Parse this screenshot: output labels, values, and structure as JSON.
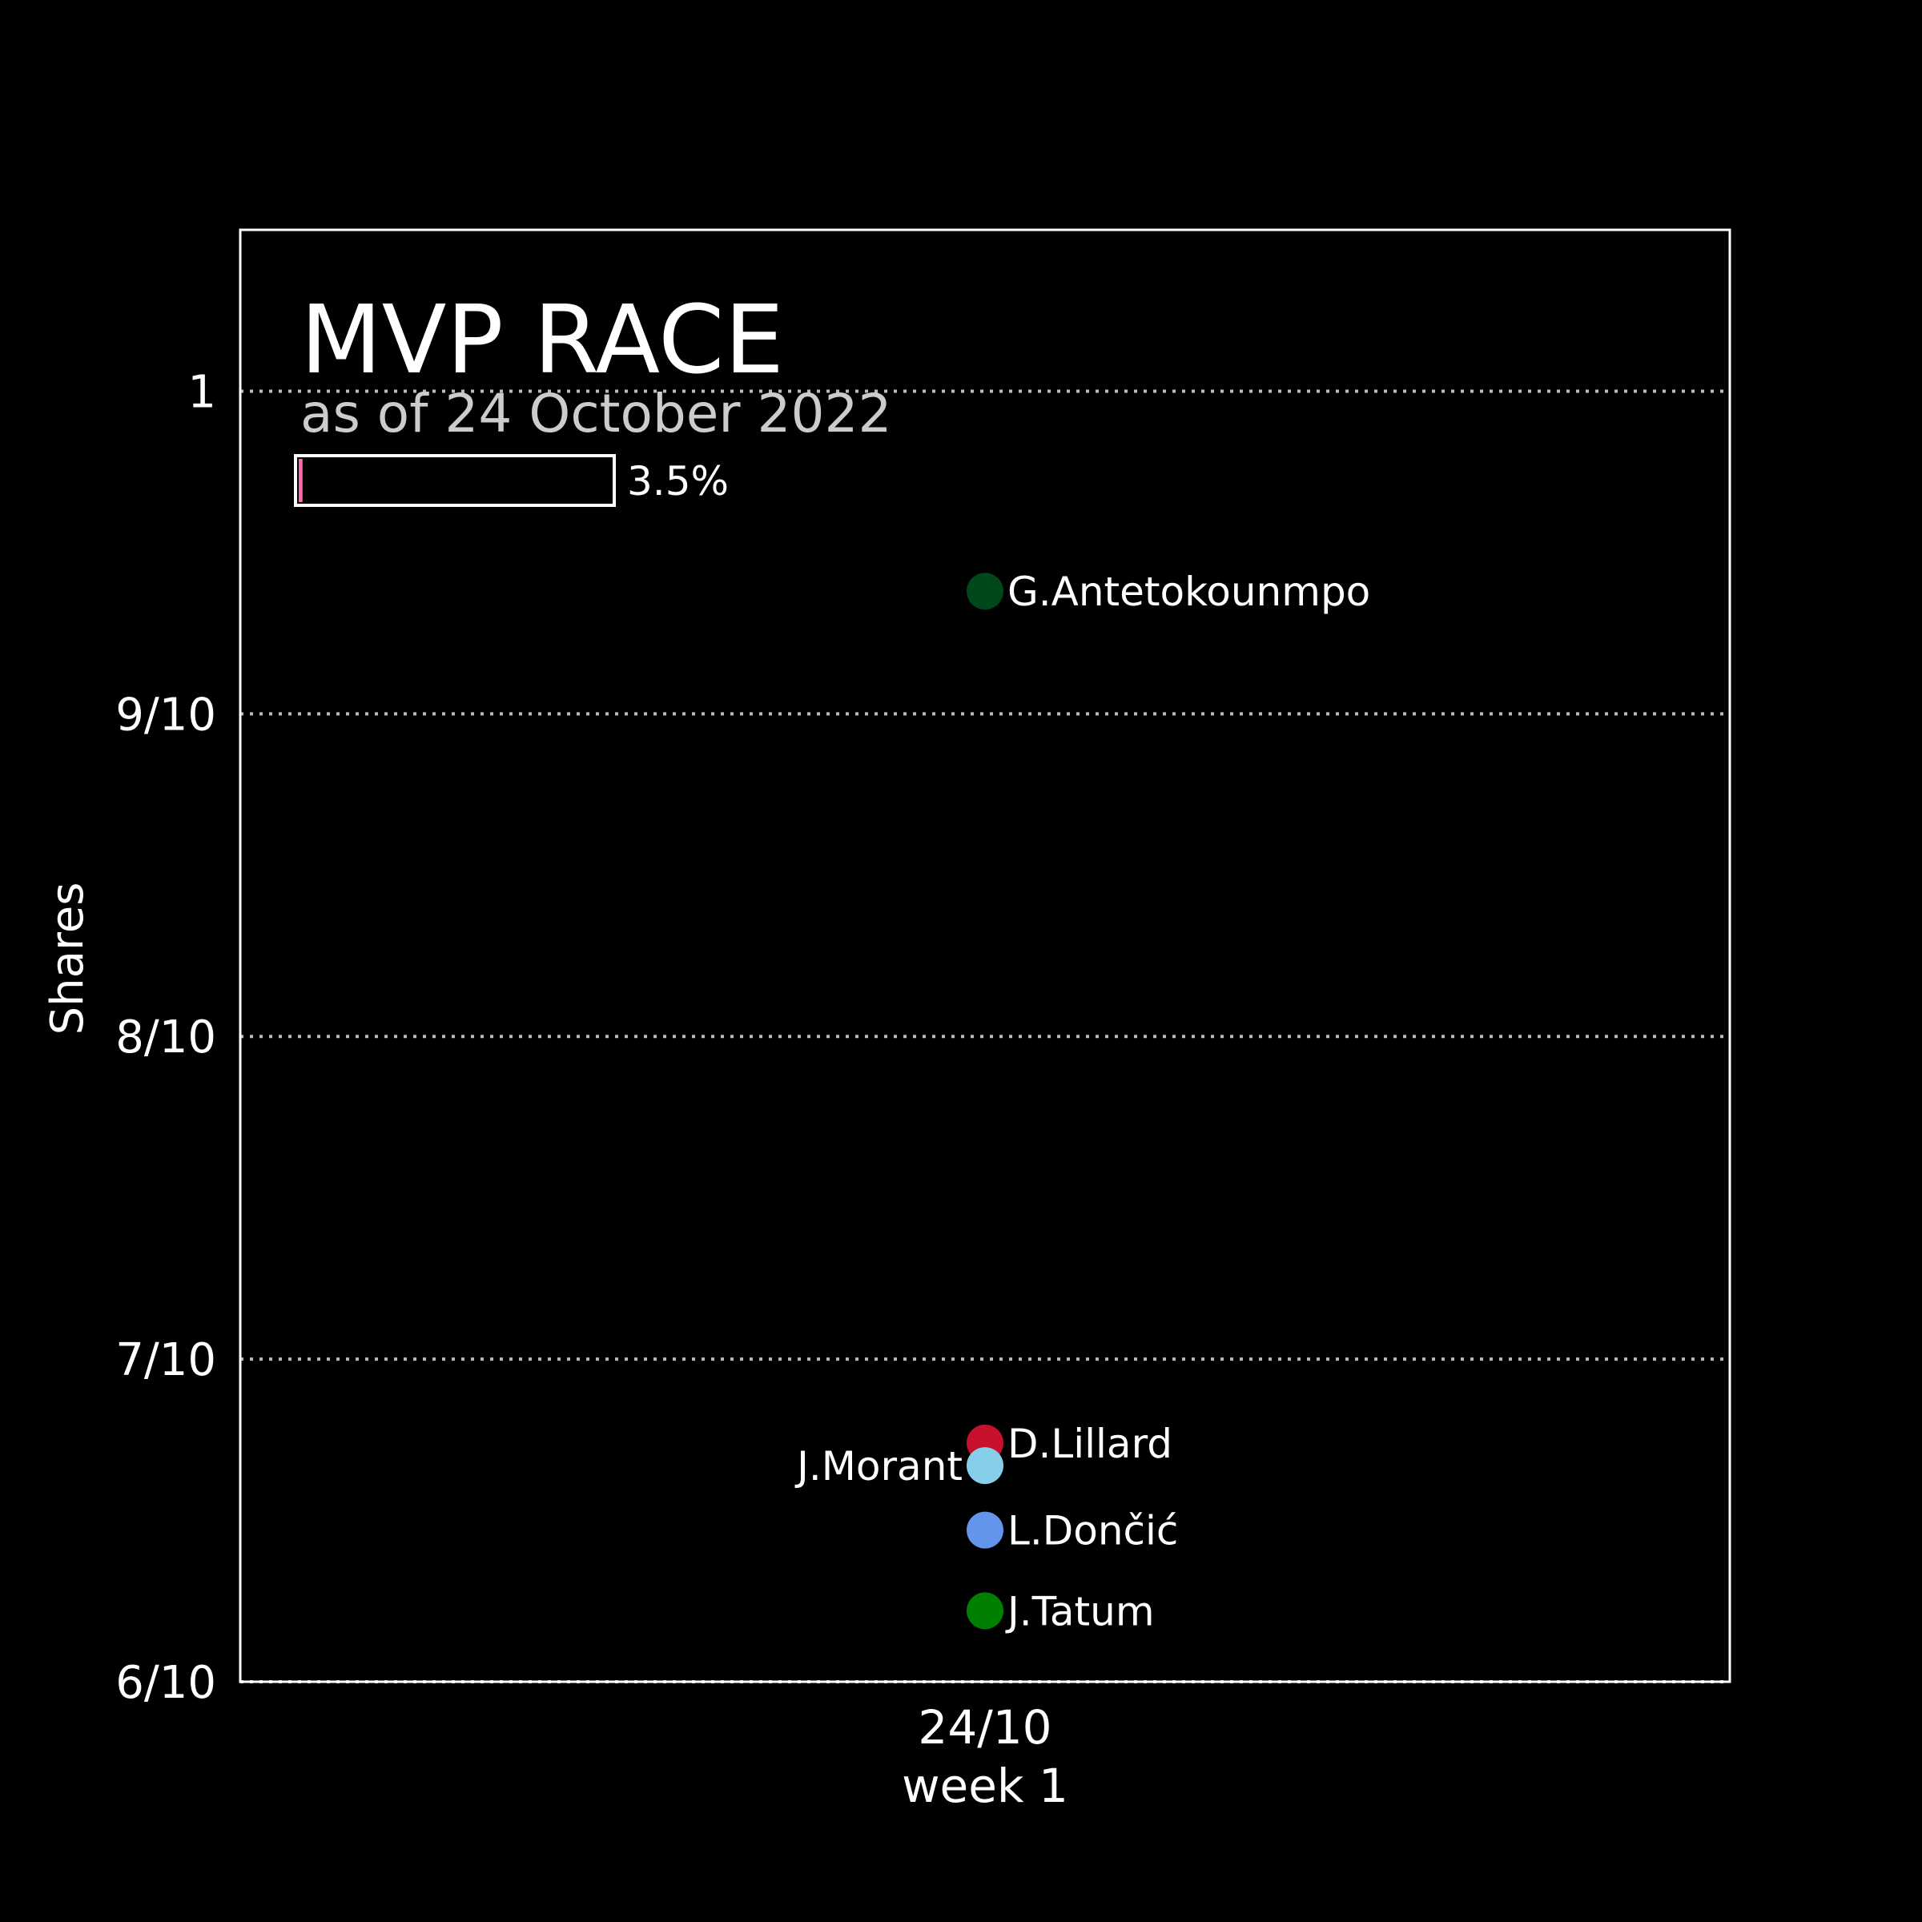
{
  "chart_data": {
    "type": "scatter",
    "title": "MVP RACE",
    "subtitle": "as of 24 October 2022",
    "ylabel": "Shares",
    "ylim": [
      0.6,
      1.05
    ],
    "yticks": [
      {
        "value": 0.6,
        "label": "6/10"
      },
      {
        "value": 0.7,
        "label": "7/10"
      },
      {
        "value": 0.8,
        "label": "8/10"
      },
      {
        "value": 0.9,
        "label": "9/10"
      },
      {
        "value": 1.0,
        "label": "1"
      }
    ],
    "x_categories": [
      {
        "date": "24/10",
        "week": "week 1"
      }
    ],
    "grid": true,
    "progress": {
      "value": 0.035,
      "label": "3.5%",
      "color": "#ff69b4"
    },
    "points": [
      {
        "name": "G.Antetokounmpo",
        "x": "24/10",
        "y": 0.938,
        "color": "#00471b",
        "label_side": "right"
      },
      {
        "name": "D.Lillard",
        "x": "24/10",
        "y": 0.674,
        "color": "#c8102e",
        "label_side": "right"
      },
      {
        "name": "J.Morant",
        "x": "24/10",
        "y": 0.667,
        "color": "#87ceeb",
        "label_side": "left"
      },
      {
        "name": "L.Dončić",
        "x": "24/10",
        "y": 0.647,
        "color": "#6495ed",
        "label_side": "right"
      },
      {
        "name": "J.Tatum",
        "x": "24/10",
        "y": 0.622,
        "color": "#008000",
        "label_side": "right"
      }
    ]
  }
}
